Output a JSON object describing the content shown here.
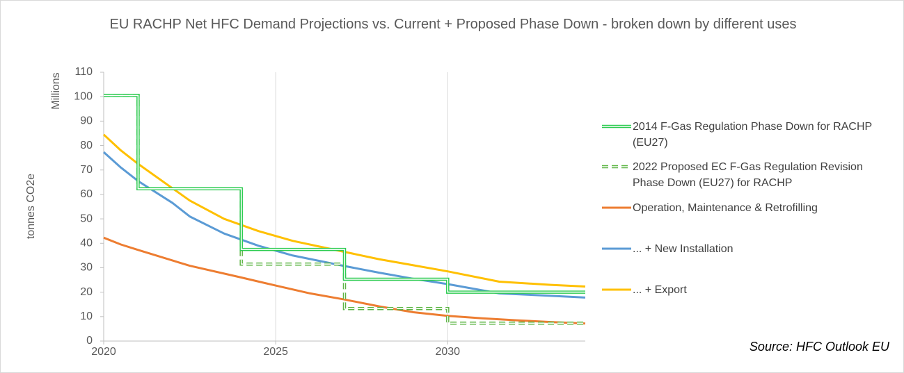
{
  "chart_data": {
    "type": "line",
    "title": "EU RACHP Net HFC Demand Projections vs. Current + Proposed Phase Down - broken down by different uses",
    "y_label": "tonnes CO2e",
    "y_unit_label": "Millions",
    "annotation": "Source: HFC Outlook EU",
    "xlim": [
      2020,
      2034
    ],
    "xticks": [
      2020,
      2025,
      2030
    ],
    "ylim": [
      0,
      110
    ],
    "yticks": [
      0,
      10,
      20,
      30,
      40,
      50,
      60,
      70,
      80,
      90,
      100,
      110
    ],
    "grid": true,
    "legend": "right",
    "series": [
      {
        "name": "2014 F-Gas Regulation Phase Down for RACHP (EU27)",
        "color": "#2ecc52",
        "step": true,
        "dashed": false,
        "x": [
          2020,
          2021,
          2021,
          2024,
          2024,
          2027,
          2027,
          2030,
          2030,
          2034
        ],
        "values": [
          100.5,
          100.5,
          62.3,
          62.3,
          37.5,
          37.5,
          25.3,
          25.3,
          20,
          20
        ]
      },
      {
        "name": "2022 Proposed EC F-Gas Regulation Revision Phase Down (EU27) for RACHP",
        "color": "#5cb544",
        "step": true,
        "dashed": true,
        "x": [
          2020,
          2021,
          2021,
          2024,
          2024,
          2027,
          2027,
          2030,
          2030,
          2034
        ],
        "values": [
          100.5,
          100.5,
          62.3,
          62.3,
          31.5,
          31.5,
          13.3,
          13.3,
          7.3,
          7.3
        ]
      },
      {
        "name": "Operation, Maintenance & Retrofilling",
        "color": "#ed7d31",
        "x": [
          2020,
          2020.5,
          2021,
          2022.5,
          2024,
          2025,
          2026,
          2027,
          2028,
          2029,
          2030,
          2031,
          2032,
          2033,
          2034
        ],
        "values": [
          42.3,
          39.5,
          37.3,
          30.8,
          26,
          22.7,
          19.5,
          17,
          14.2,
          11.8,
          10.3,
          9.3,
          8.5,
          7.8,
          7.2
        ]
      },
      {
        "name": "... + New Installation",
        "color": "#5b9bd5",
        "x": [
          2020,
          2020.5,
          2021,
          2022,
          2022.5,
          2023.5,
          2024.5,
          2025.5,
          2027,
          2028,
          2029,
          2030,
          2031.5,
          2033,
          2034
        ],
        "values": [
          77.3,
          71,
          65.5,
          56.5,
          51,
          44,
          39,
          35,
          30.7,
          28,
          25.5,
          23.3,
          19.5,
          18.5,
          17.8
        ]
      },
      {
        "name": "... + Export",
        "color": "#ffc000",
        "x": [
          2020,
          2020.5,
          2021,
          2022.5,
          2023.5,
          2024.5,
          2025.5,
          2027,
          2028,
          2029,
          2030,
          2031.5,
          2033,
          2034
        ],
        "values": [
          84.5,
          78,
          72.5,
          57.5,
          50,
          45,
          41,
          36.5,
          33.5,
          31,
          28.5,
          24.3,
          23,
          22.3
        ]
      }
    ]
  }
}
